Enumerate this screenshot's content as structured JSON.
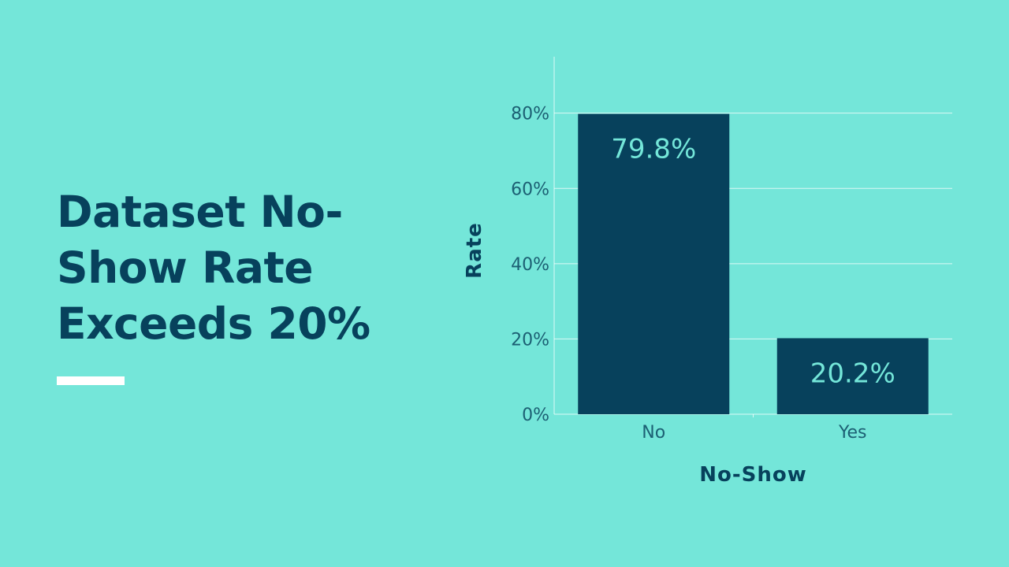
{
  "slide": {
    "title": "Dataset No-Show Rate Exceeds 20%"
  },
  "colors": {
    "background": "#74e6d9",
    "bar": "#07415c",
    "bar_label": "#74e6d9",
    "title": "#07415c",
    "gridline": "#ffffff",
    "accent_rule": "#ffffff"
  },
  "chart_data": {
    "type": "bar",
    "categories": [
      "No",
      "Yes"
    ],
    "values": [
      79.8,
      20.2
    ],
    "value_labels": [
      "79.8%",
      "20.2%"
    ],
    "xlabel": "No-Show",
    "ylabel": "Rate",
    "ylim": [
      0,
      95
    ],
    "yticks": [
      0,
      20,
      40,
      60,
      80
    ],
    "ytick_labels": [
      "0%",
      "20%",
      "40%",
      "60%",
      "80%"
    ],
    "grid": true,
    "legend": "none"
  }
}
